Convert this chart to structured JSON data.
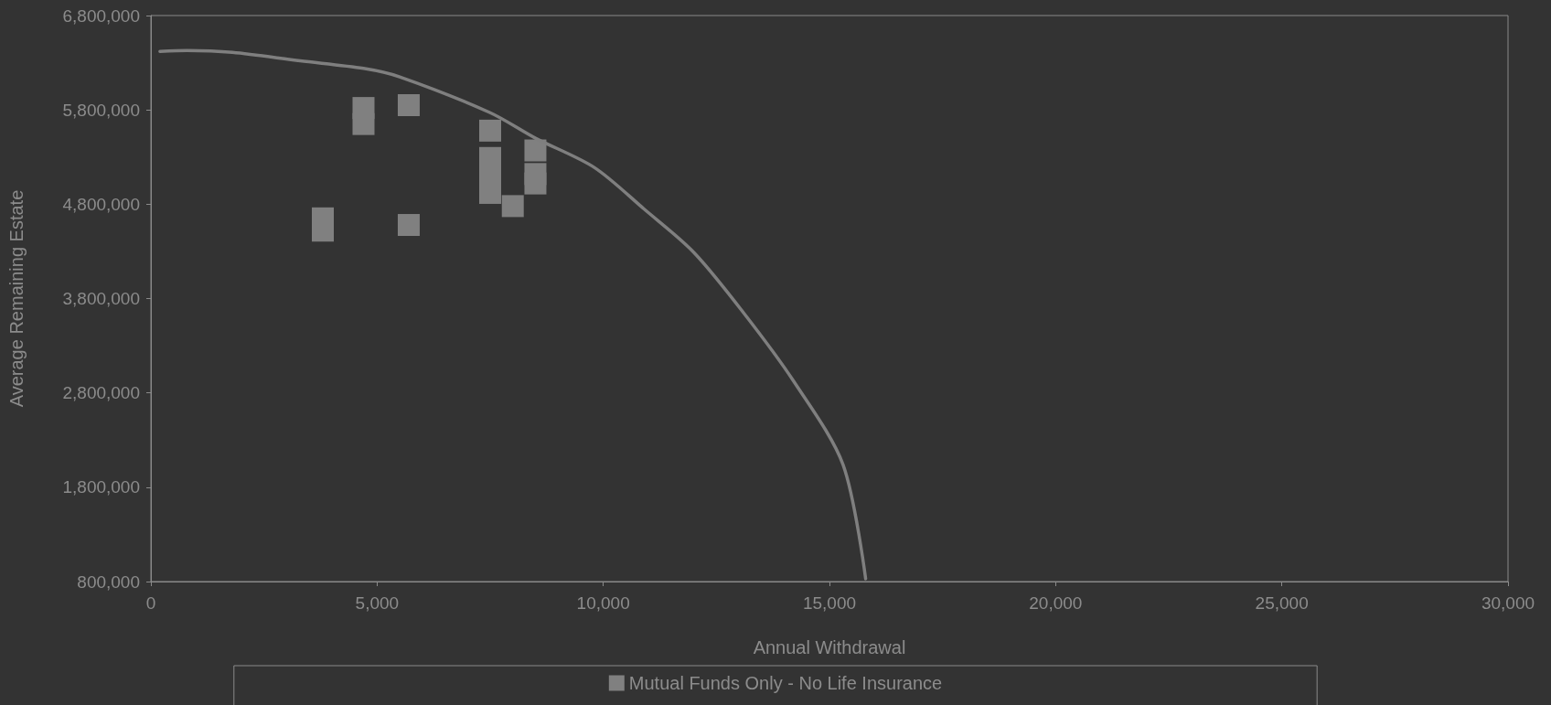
{
  "chart_data": {
    "type": "scatter",
    "xlabel": "Annual Withdrawal",
    "ylabel": "Average Remaining Estate",
    "xlim": [
      0,
      30000
    ],
    "xticks": [
      {
        "value": 0,
        "label": "0"
      },
      {
        "value": 5000,
        "label": "5,000"
      },
      {
        "value": 10000,
        "label": "10,000"
      },
      {
        "value": 15000,
        "label": "15,000"
      },
      {
        "value": 20000,
        "label": "20,000"
      },
      {
        "value": 25000,
        "label": "25,000"
      },
      {
        "value": 30000,
        "label": "30,000"
      }
    ],
    "ylim": [
      800000,
      6800000
    ],
    "yticks": [
      {
        "value": 800000,
        "label": "800,000"
      },
      {
        "value": 1800000,
        "label": "1,800,000"
      },
      {
        "value": 2800000,
        "label": "2,800,000"
      },
      {
        "value": 3800000,
        "label": "3,800,000"
      },
      {
        "value": 4800000,
        "label": "4,800,000"
      },
      {
        "value": 5800000,
        "label": "5,800,000"
      },
      {
        "value": 6800000,
        "label": "6,800,000"
      }
    ],
    "grid": false,
    "legend": "bottom",
    "marker": "square",
    "series": [
      {
        "name": "Mutual Funds Only - No Life Insurance",
        "color": "#808080",
        "x": [
          4700,
          4700,
          5700,
          3800,
          3800,
          5700,
          7500,
          7500,
          7500,
          7500,
          8000,
          8500,
          8500,
          8500
        ],
        "values": [
          5820000,
          5650000,
          5850000,
          4650000,
          4520000,
          4580000,
          5580000,
          5290000,
          5110000,
          4920000,
          4780000,
          5370000,
          5120000,
          5020000
        ]
      },
      {
        "type": "line",
        "marker": "none",
        "color": "#7f7f7f",
        "x": [
          200,
          800,
          1800,
          3300,
          4700,
          5500,
          7500,
          8500,
          9800,
          10900,
          12000,
          13100,
          14200,
          15300,
          15800
        ],
        "values": [
          6420000,
          6430000,
          6410000,
          6320000,
          6240000,
          6150000,
          5770000,
          5500000,
          5190000,
          4750000,
          4290000,
          3650000,
          2930000,
          2040000,
          830000
        ]
      }
    ]
  }
}
